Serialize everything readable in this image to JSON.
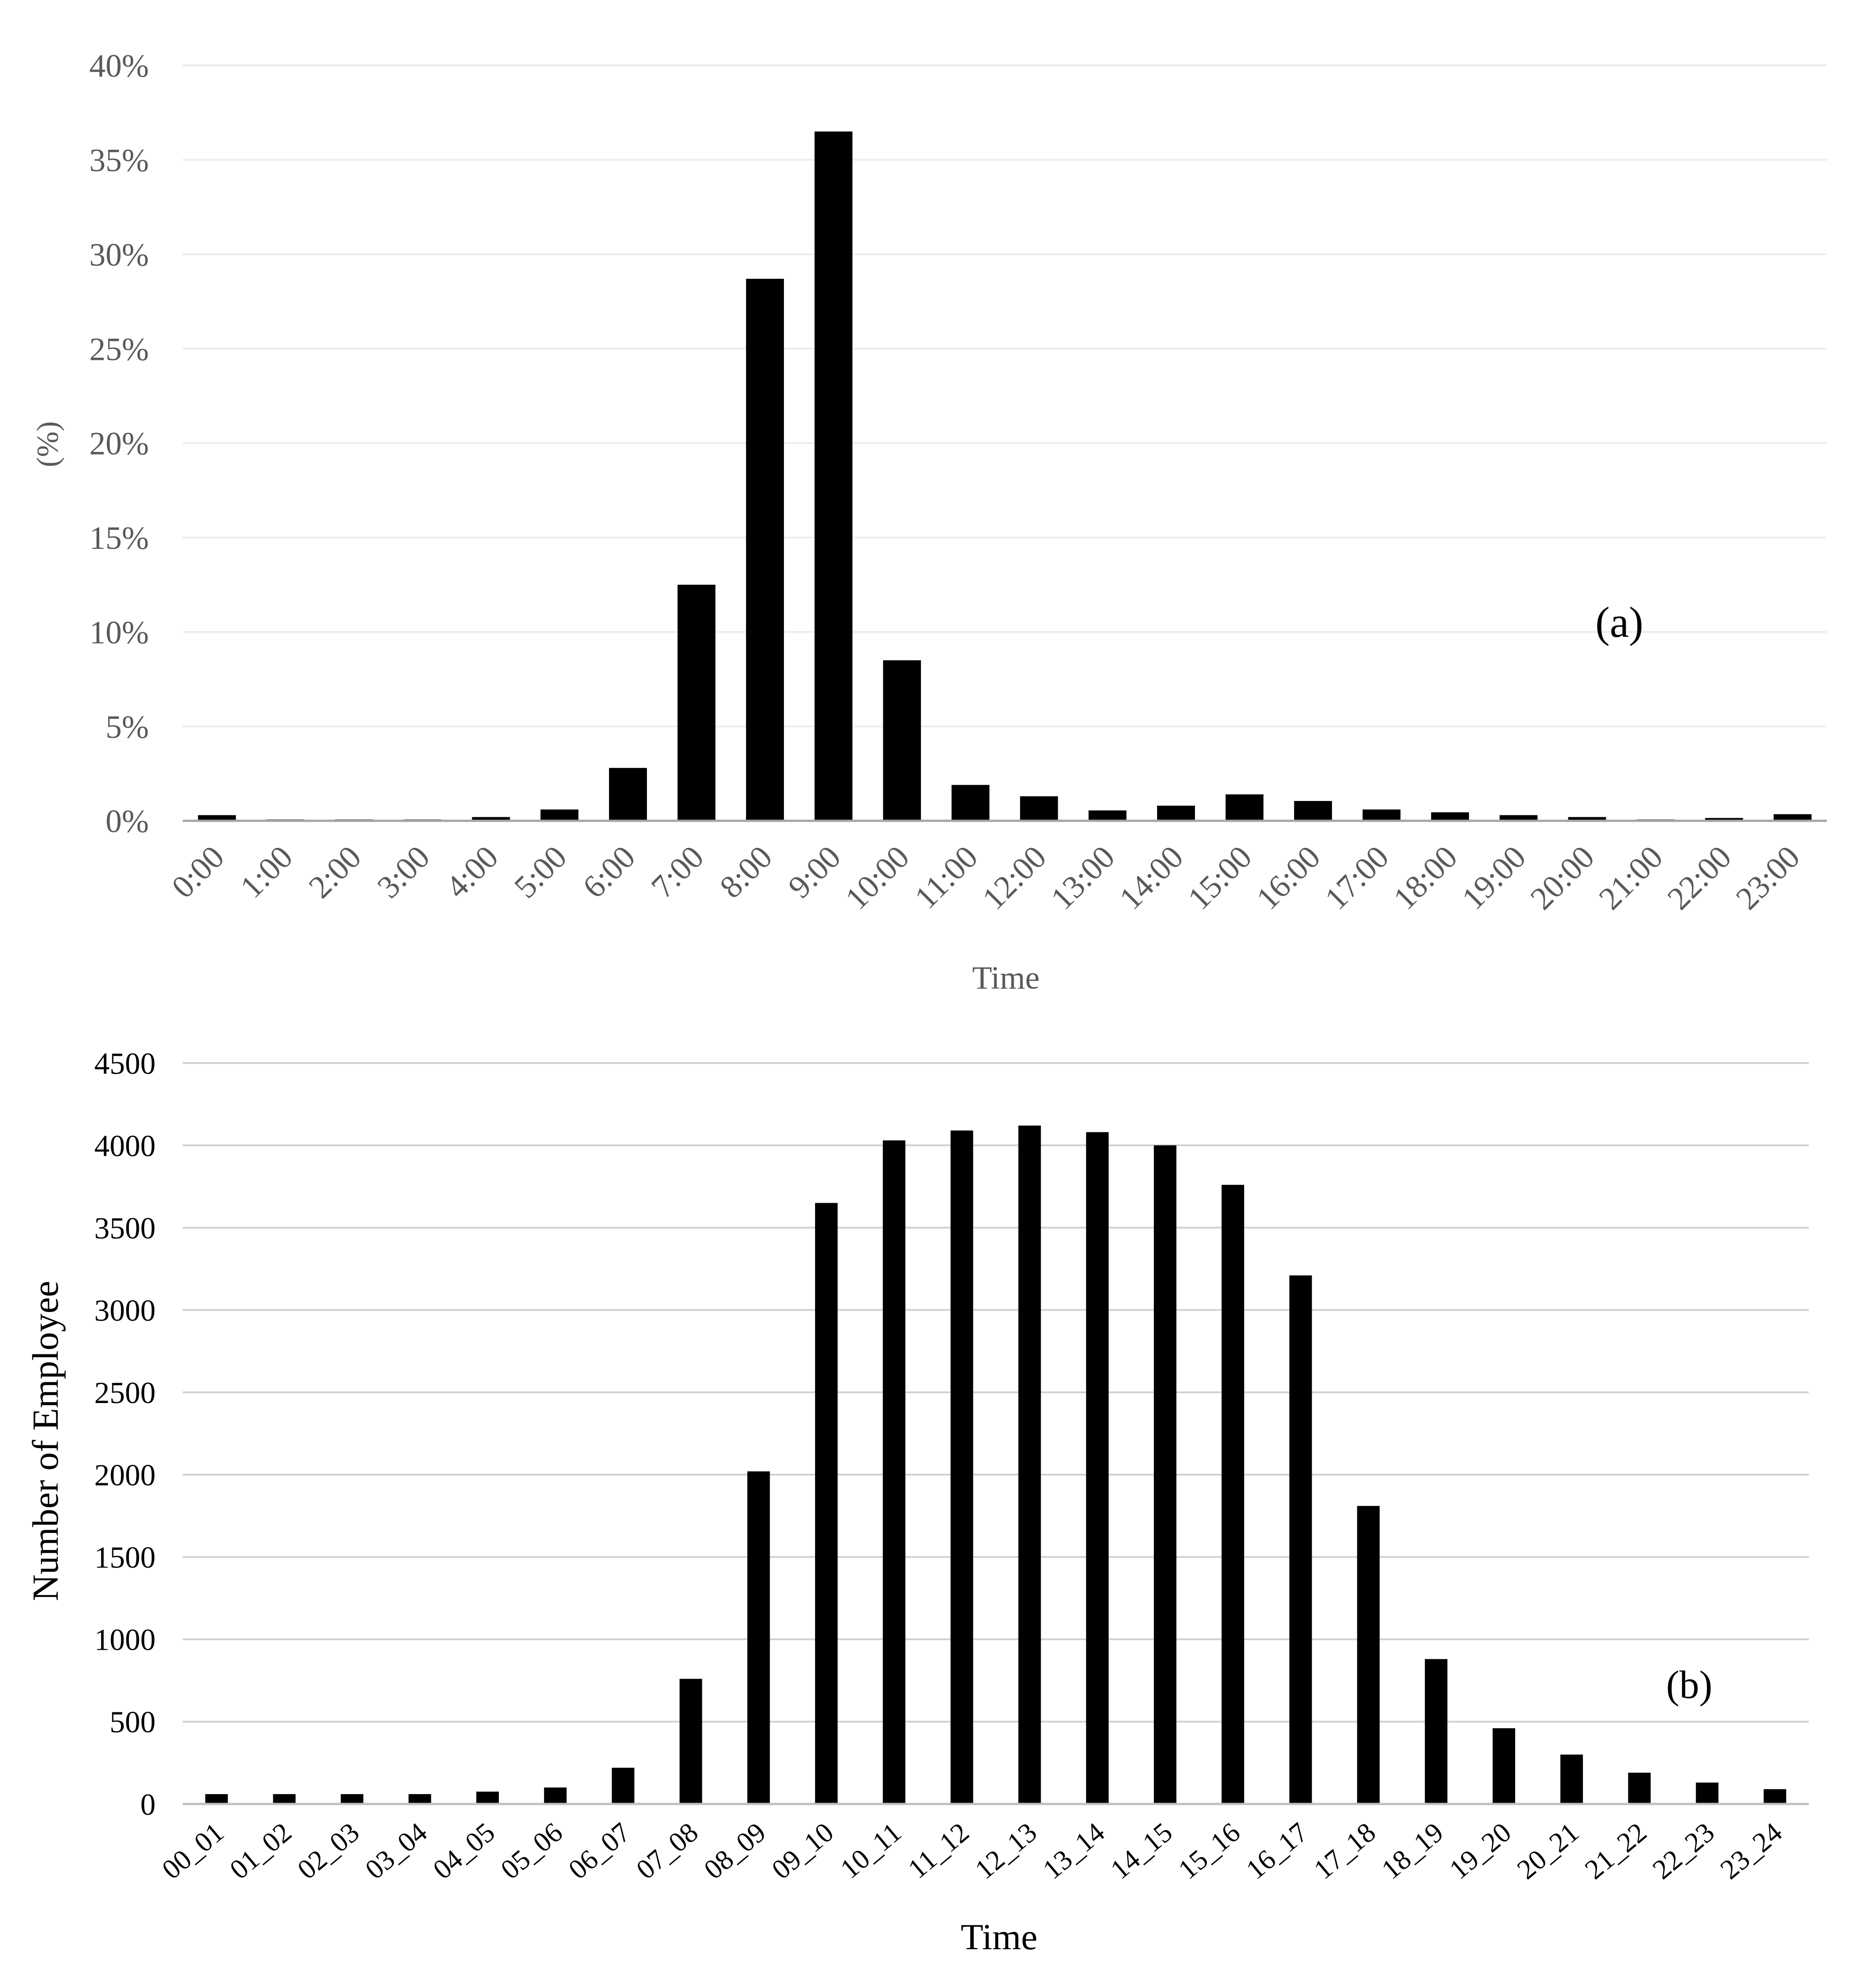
{
  "chart_data": [
    {
      "panel": "(a)",
      "type": "bar",
      "title": "",
      "xlabel": "Time",
      "ylabel": "(%)",
      "ylim": [
        0,
        40
      ],
      "yticks": [
        "0%",
        "5%",
        "10%",
        "15%",
        "20%",
        "25%",
        "30%",
        "35%",
        "40%"
      ],
      "grid": true,
      "categories": [
        "0:00",
        "1:00",
        "2:00",
        "3:00",
        "4:00",
        "5:00",
        "6:00",
        "7:00",
        "8:00",
        "9:00",
        "10:00",
        "11:00",
        "12:00",
        "13:00",
        "14:00",
        "15:00",
        "16:00",
        "17:00",
        "18:00",
        "19:00",
        "20:00",
        "21:00",
        "22:00",
        "23:00"
      ],
      "values": [
        0.3,
        0.05,
        0.05,
        0.05,
        0.2,
        0.6,
        2.8,
        12.5,
        28.7,
        36.5,
        8.5,
        1.9,
        1.3,
        0.55,
        0.8,
        1.4,
        1.05,
        0.6,
        0.45,
        0.3,
        0.2,
        0.05,
        0.15,
        0.35
      ],
      "bar_color": "#000000"
    },
    {
      "panel": "(b)",
      "type": "bar",
      "title": "",
      "xlabel": "Time",
      "ylabel": "Number of Employee",
      "ylim": [
        0,
        4500
      ],
      "yticks": [
        "0",
        "500",
        "1000",
        "1500",
        "2000",
        "2500",
        "3000",
        "3500",
        "4000",
        "4500"
      ],
      "grid": true,
      "categories": [
        "00_01",
        "01_02",
        "02_03",
        "03_04",
        "04_05",
        "05_06",
        "06_07",
        "07_08",
        "08_09",
        "09_10",
        "10_11",
        "11_12",
        "12_13",
        "13_14",
        "14_15",
        "15_16",
        "16_17",
        "17_18",
        "18_19",
        "19_20",
        "20_21",
        "21_22",
        "22_23",
        "23_24"
      ],
      "values": [
        60,
        60,
        60,
        60,
        75,
        100,
        220,
        760,
        2020,
        3650,
        4030,
        4090,
        4120,
        4080,
        4000,
        3760,
        3210,
        1810,
        880,
        460,
        300,
        190,
        130,
        90
      ],
      "bar_color": "#000000"
    }
  ]
}
